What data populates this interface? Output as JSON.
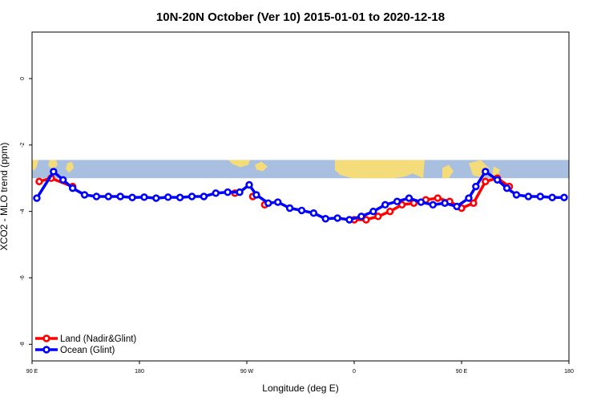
{
  "chart_data": {
    "type": "line",
    "title": "10N-20N October (Ver 10)   2015-01-01 to 2020-12-18",
    "xlabel": "Longitude (deg E)",
    "ylabel": "XCO2 - MLO trend (ppm)",
    "xlim": [
      90,
      540
    ],
    "ylim": [
      -8.5,
      1.4
    ],
    "x_ticks": [
      {
        "value": 90,
        "label": "90 E"
      },
      {
        "value": 180,
        "label": "180"
      },
      {
        "value": 270,
        "label": "90 W"
      },
      {
        "value": 360,
        "label": "0"
      },
      {
        "value": 450,
        "label": "90 E"
      },
      {
        "value": 540,
        "label": "180"
      }
    ],
    "y_ticks": [
      {
        "value": 0,
        "label": "0"
      },
      {
        "value": -2,
        "label": "-2"
      },
      {
        "value": -4,
        "label": "-4"
      },
      {
        "value": -6,
        "label": "-6"
      },
      {
        "value": -8,
        "label": "-8"
      }
    ],
    "map_band": {
      "ymin": -3.0,
      "ymax": -2.45,
      "ocean_color": "#a8bfe0",
      "land_color": "#f5dc7a"
    },
    "legend_position": "bottom-left",
    "series": [
      {
        "name": "Land (Nadir&Glint)",
        "color": "#ff0000",
        "x": [
          96,
          106,
          124,
          360,
          370,
          380,
          390,
          400,
          410,
          420,
          430,
          440,
          450,
          460,
          470,
          480,
          490
        ],
        "y": [
          -3.1,
          -3.0,
          -3.25,
          -4.25,
          -4.25,
          -4.15,
          -4.0,
          -3.8,
          -3.75,
          -3.65,
          -3.6,
          -3.7,
          -3.9,
          -3.75,
          -3.1,
          -3.0,
          -3.25
        ],
        "segments": [
          [
            96,
            106,
            124
          ],
          [
            360,
            370,
            380,
            390,
            400,
            410,
            420,
            430,
            440,
            450,
            460,
            470,
            480,
            490
          ]
        ],
        "extra": [
          {
            "x": 260,
            "y": -3.45
          },
          {
            "x": 275,
            "y": -3.55
          },
          {
            "x": 285,
            "y": -3.8
          }
        ]
      },
      {
        "name": "Ocean (Glint)",
        "color": "#0000ff",
        "x": [
          94,
          108,
          116,
          124,
          134,
          144,
          154,
          164,
          174,
          184,
          194,
          204,
          214,
          224,
          234,
          244,
          254,
          264,
          272,
          278,
          288,
          296,
          306,
          316,
          326,
          336,
          346,
          356,
          366,
          376,
          386,
          396,
          406,
          416,
          426,
          436,
          446,
          456,
          462,
          470,
          480,
          488,
          496,
          506,
          516,
          526,
          536
        ],
        "y": [
          -3.6,
          -2.8,
          -3.05,
          -3.3,
          -3.5,
          -3.55,
          -3.55,
          -3.55,
          -3.58,
          -3.57,
          -3.6,
          -3.57,
          -3.58,
          -3.55,
          -3.55,
          -3.45,
          -3.42,
          -3.42,
          -3.2,
          -3.5,
          -3.75,
          -3.72,
          -3.9,
          -3.97,
          -4.05,
          -4.22,
          -4.2,
          -4.25,
          -4.15,
          -4.0,
          -3.8,
          -3.7,
          -3.6,
          -3.72,
          -3.8,
          -3.75,
          -3.85,
          -3.6,
          -3.25,
          -2.8,
          -3.05,
          -3.3,
          -3.5,
          -3.55,
          -3.55,
          -3.58,
          -3.58
        ]
      }
    ]
  }
}
